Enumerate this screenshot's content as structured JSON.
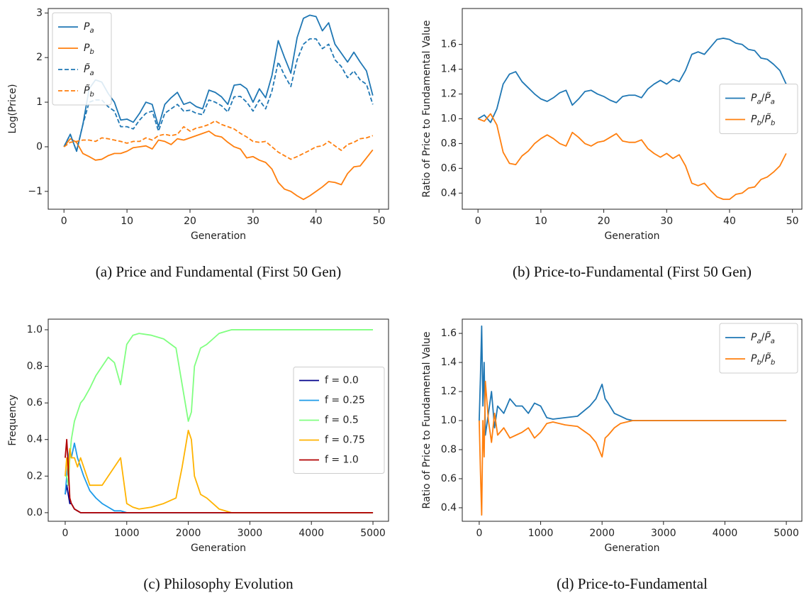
{
  "chart_data": [
    {
      "type": "line",
      "caption": "(a) Price and Fundamental (First 50 Gen)",
      "xlabel": "Generation",
      "ylabel": "Log(Price)",
      "xlim": [
        -2.5,
        51.5
      ],
      "xticks": [
        0,
        10,
        20,
        30,
        40,
        50
      ],
      "ylim": [
        -1.4,
        3.1
      ],
      "yticks": [
        {
          "value": -1,
          "label": "−1"
        },
        0,
        1,
        2,
        3
      ],
      "legend": "upper left",
      "x": [
        0,
        1,
        2,
        3,
        4,
        5,
        6,
        7,
        8,
        9,
        10,
        11,
        12,
        13,
        14,
        15,
        16,
        17,
        18,
        19,
        20,
        21,
        22,
        23,
        24,
        25,
        26,
        27,
        28,
        29,
        30,
        31,
        32,
        33,
        34,
        35,
        36,
        37,
        38,
        39,
        40,
        41,
        42,
        43,
        44,
        45,
        46,
        47,
        48,
        49
      ],
      "series": [
        {
          "name": "Pa",
          "color": "#1f77b4",
          "dashed": false,
          "values": [
            0,
            0.28,
            -0.1,
            0.5,
            1.3,
            1.5,
            1.45,
            1.2,
            1.0,
            0.6,
            0.62,
            0.55,
            0.75,
            1.0,
            0.95,
            0.45,
            0.95,
            1.1,
            1.22,
            0.95,
            1.0,
            0.9,
            0.85,
            1.27,
            1.22,
            1.12,
            0.95,
            1.38,
            1.4,
            1.3,
            1.0,
            1.3,
            1.1,
            1.6,
            2.38,
            2.0,
            1.65,
            2.45,
            2.88,
            2.95,
            2.92,
            2.6,
            2.78,
            2.3,
            2.1,
            1.9,
            2.12,
            1.9,
            1.7,
            1.15
          ]
        },
        {
          "name": "Pb",
          "color": "#ff7f0e",
          "dashed": false,
          "values": [
            0,
            0.18,
            0.1,
            -0.15,
            -0.22,
            -0.3,
            -0.28,
            -0.2,
            -0.15,
            -0.15,
            -0.1,
            -0.02,
            0,
            0.02,
            -0.05,
            0.15,
            0.12,
            0.05,
            0.18,
            0.15,
            0.2,
            0.25,
            0.3,
            0.35,
            0.25,
            0.22,
            0.1,
            0,
            -0.05,
            -0.25,
            -0.22,
            -0.3,
            -0.35,
            -0.5,
            -0.8,
            -0.95,
            -1.0,
            -1.1,
            -1.18,
            -1.1,
            -1.0,
            -0.9,
            -0.78,
            -0.8,
            -0.85,
            -0.6,
            -0.45,
            -0.43,
            -0.25,
            -0.07
          ]
        },
        {
          "name": "P̃a",
          "color": "#1f77b4",
          "dashed": true,
          "values": [
            0,
            0.28,
            -0.1,
            0.5,
            1.0,
            1.05,
            1.05,
            0.9,
            0.8,
            0.45,
            0.45,
            0.4,
            0.6,
            0.75,
            0.8,
            0.35,
            0.75,
            0.85,
            0.95,
            0.8,
            0.82,
            0.75,
            0.72,
            1.05,
            1.0,
            0.92,
            0.78,
            1.12,
            1.13,
            1.0,
            0.8,
            1.05,
            0.85,
            1.25,
            1.9,
            1.6,
            1.35,
            1.95,
            2.3,
            2.42,
            2.42,
            2.2,
            2.3,
            1.95,
            1.8,
            1.55,
            1.7,
            1.5,
            1.4,
            0.95
          ]
        },
        {
          "name": "P̃b",
          "color": "#ff7f0e",
          "dashed": true,
          "values": [
            0,
            0.1,
            0.12,
            0.15,
            0.15,
            0.12,
            0.2,
            0.18,
            0.15,
            0.12,
            0.08,
            0.12,
            0.12,
            0.2,
            0.15,
            0.25,
            0.28,
            0.25,
            0.28,
            0.45,
            0.35,
            0.42,
            0.45,
            0.5,
            0.58,
            0.5,
            0.45,
            0.4,
            0.3,
            0.22,
            0.12,
            0.1,
            0.12,
            0,
            -0.12,
            -0.2,
            -0.28,
            -0.22,
            -0.15,
            -0.08,
            0,
            0.02,
            0.12,
            0.02,
            -0.08,
            0.05,
            0.1,
            0.18,
            0.2,
            0.25
          ]
        }
      ]
    },
    {
      "type": "line",
      "caption": "(b) Price-to-Fundamental (First 50 Gen)",
      "xlabel": "Generation",
      "ylabel": "Ratio of Price to Fundamental Value",
      "xlim": [
        -2.5,
        51.5
      ],
      "xticks": [
        0,
        10,
        20,
        30,
        40,
        50
      ],
      "ylim": [
        0.27,
        1.89
      ],
      "yticks": [
        0.4,
        0.6,
        0.8,
        {
          "value": 1,
          "label": "1.0"
        },
        1.2,
        1.4,
        1.6
      ],
      "legend": "center right",
      "x": [
        0,
        1,
        2,
        3,
        4,
        5,
        6,
        7,
        8,
        9,
        10,
        11,
        12,
        13,
        14,
        15,
        16,
        17,
        18,
        19,
        20,
        21,
        22,
        23,
        24,
        25,
        26,
        27,
        28,
        29,
        30,
        31,
        32,
        33,
        34,
        35,
        36,
        37,
        38,
        39,
        40,
        41,
        42,
        43,
        44,
        45,
        46,
        47,
        48,
        49
      ],
      "series": [
        {
          "name": "Pa/P̃a",
          "color": "#1f77b4",
          "dashed": false,
          "values": [
            1.0,
            1.03,
            0.97,
            1.08,
            1.28,
            1.36,
            1.38,
            1.3,
            1.25,
            1.2,
            1.16,
            1.14,
            1.17,
            1.21,
            1.23,
            1.11,
            1.16,
            1.22,
            1.23,
            1.2,
            1.18,
            1.15,
            1.13,
            1.18,
            1.19,
            1.19,
            1.17,
            1.24,
            1.28,
            1.31,
            1.28,
            1.32,
            1.3,
            1.39,
            1.52,
            1.54,
            1.52,
            1.58,
            1.64,
            1.65,
            1.64,
            1.61,
            1.6,
            1.56,
            1.55,
            1.49,
            1.48,
            1.44,
            1.39,
            1.28
          ]
        },
        {
          "name": "Pb/P̃b",
          "color": "#ff7f0e",
          "dashed": false,
          "values": [
            1.0,
            0.98,
            1.04,
            0.95,
            0.73,
            0.64,
            0.63,
            0.7,
            0.74,
            0.8,
            0.84,
            0.87,
            0.84,
            0.8,
            0.78,
            0.89,
            0.85,
            0.8,
            0.78,
            0.81,
            0.82,
            0.85,
            0.88,
            0.82,
            0.81,
            0.81,
            0.83,
            0.76,
            0.72,
            0.69,
            0.72,
            0.68,
            0.71,
            0.62,
            0.48,
            0.46,
            0.48,
            0.42,
            0.37,
            0.35,
            0.35,
            0.39,
            0.4,
            0.44,
            0.45,
            0.51,
            0.53,
            0.57,
            0.62,
            0.72
          ]
        }
      ]
    },
    {
      "type": "line",
      "caption": "(c) Philosophy Evolution",
      "xlabel": "Generation",
      "ylabel": "Frequency",
      "xlim": [
        -276,
        5253
      ],
      "xticks": [
        0,
        1000,
        2000,
        3000,
        4000,
        5000
      ],
      "ylim": [
        -0.047,
        1.058
      ],
      "yticks": [
        {
          "value": 0,
          "label": "0.0"
        },
        0.2,
        0.4,
        0.6,
        0.8,
        {
          "value": 1,
          "label": "1.0"
        }
      ],
      "legend": "center right",
      "x": [
        0,
        25,
        50,
        75,
        100,
        150,
        200,
        250,
        300,
        400,
        500,
        600,
        700,
        800,
        900,
        1000,
        1100,
        1200,
        1400,
        1600,
        1800,
        1900,
        2000,
        2050,
        2100,
        2200,
        2300,
        2400,
        2500,
        2600,
        2700,
        2800,
        3000,
        4000,
        5000
      ],
      "series": [
        {
          "name": "f = 0.0",
          "color": "#00008b",
          "dashed": false,
          "values": [
            0.1,
            0.15,
            0.1,
            0.05,
            0.05,
            0.02,
            0.01,
            0,
            0,
            0,
            0,
            0,
            0,
            0,
            0,
            0,
            0,
            0,
            0,
            0,
            0,
            0,
            0,
            0,
            0,
            0,
            0,
            0,
            0,
            0,
            0,
            0,
            0,
            0,
            0
          ]
        },
        {
          "name": "f = 0.25",
          "color": "#1e9be9",
          "dashed": false,
          "values": [
            0.1,
            0.2,
            0.3,
            0.35,
            0.3,
            0.38,
            0.3,
            0.25,
            0.2,
            0.12,
            0.08,
            0.05,
            0.03,
            0.01,
            0.01,
            0,
            0,
            0,
            0,
            0,
            0,
            0,
            0,
            0,
            0,
            0,
            0,
            0,
            0,
            0,
            0,
            0,
            0,
            0,
            0
          ]
        },
        {
          "name": "f = 0.5",
          "color": "#80ff80",
          "dashed": false,
          "values": [
            0.2,
            0.2,
            0.15,
            0.3,
            0.4,
            0.5,
            0.55,
            0.6,
            0.62,
            0.68,
            0.75,
            0.8,
            0.85,
            0.82,
            0.7,
            0.92,
            0.97,
            0.98,
            0.97,
            0.95,
            0.9,
            0.7,
            0.5,
            0.55,
            0.8,
            0.9,
            0.92,
            0.95,
            0.98,
            0.99,
            1.0,
            1.0,
            1.0,
            1.0,
            1.0
          ]
        },
        {
          "name": "f = 0.75",
          "color": "#ffb300",
          "dashed": false,
          "values": [
            0.2,
            0.3,
            0.2,
            0.35,
            0.3,
            0.3,
            0.25,
            0.3,
            0.25,
            0.15,
            0.15,
            0.15,
            0.2,
            0.25,
            0.3,
            0.05,
            0.03,
            0.02,
            0.03,
            0.05,
            0.08,
            0.25,
            0.45,
            0.4,
            0.2,
            0.1,
            0.08,
            0.05,
            0.02,
            0.01,
            0,
            0,
            0,
            0,
            0
          ]
        },
        {
          "name": "f = 1.0",
          "color": "#b20000",
          "dashed": false,
          "values": [
            0.3,
            0.4,
            0.25,
            0.08,
            0.05,
            0.02,
            0.01,
            0,
            0,
            0,
            0,
            0,
            0,
            0,
            0,
            0,
            0,
            0,
            0,
            0,
            0,
            0,
            0,
            0,
            0,
            0,
            0,
            0,
            0,
            0,
            0,
            0,
            0,
            0,
            0
          ]
        }
      ]
    },
    {
      "type": "line",
      "caption": "(d) Price-to-Fundamental",
      "xlabel": "Generation",
      "ylabel": "Ratio of Price to Fundamental Value",
      "xlim": [
        -276,
        5253
      ],
      "xticks": [
        0,
        1000,
        2000,
        3000,
        4000,
        5000
      ],
      "ylim": [
        0.307,
        1.698
      ],
      "yticks": [
        0.4,
        0.6,
        0.8,
        {
          "value": 1,
          "label": "1.0"
        },
        1.2,
        1.4,
        1.6
      ],
      "legend": "upper right",
      "x": [
        0,
        20,
        40,
        60,
        80,
        100,
        150,
        200,
        250,
        300,
        400,
        500,
        600,
        700,
        800,
        900,
        1000,
        1100,
        1200,
        1400,
        1600,
        1800,
        1900,
        2000,
        2050,
        2100,
        2200,
        2300,
        2400,
        2500,
        2700,
        2800,
        3000,
        4000,
        5000
      ],
      "series": [
        {
          "name": "Pa/P̃a",
          "color": "#1f77b4",
          "dashed": false,
          "values": [
            1.0,
            1.3,
            1.65,
            1.1,
            1.4,
            0.9,
            1.05,
            1.2,
            0.95,
            1.1,
            1.05,
            1.15,
            1.1,
            1.1,
            1.05,
            1.12,
            1.1,
            1.02,
            1.01,
            1.02,
            1.03,
            1.1,
            1.15,
            1.25,
            1.15,
            1.12,
            1.05,
            1.03,
            1.01,
            1.0,
            1.0,
            1.0,
            1.0,
            1.0,
            1.0
          ]
        },
        {
          "name": "Pb/P̃b",
          "color": "#ff7f0e",
          "dashed": false,
          "values": [
            1.0,
            0.65,
            0.35,
            1.0,
            0.75,
            1.27,
            1.0,
            0.85,
            1.05,
            0.9,
            0.95,
            0.88,
            0.9,
            0.92,
            0.95,
            0.88,
            0.92,
            0.98,
            0.99,
            0.97,
            0.96,
            0.9,
            0.85,
            0.75,
            0.88,
            0.9,
            0.95,
            0.98,
            0.99,
            1.0,
            1.0,
            1.0,
            1.0,
            1.0,
            1.0
          ]
        }
      ]
    }
  ]
}
